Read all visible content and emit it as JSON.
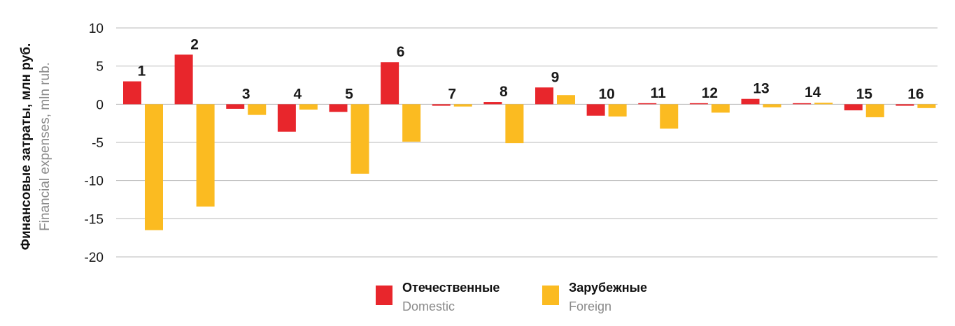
{
  "chart_data": {
    "type": "bar",
    "ylabel_ru": "Финансовые затраты, млн руб.",
    "ylabel_en": "Financial expenses, mln rub.",
    "ylim": [
      -20,
      10
    ],
    "yticks": [
      10,
      5,
      0,
      -5,
      -10,
      -15,
      -20
    ],
    "ytick_labels": [
      "10",
      "5",
      "0",
      "-5",
      "-10",
      "-15",
      "-20"
    ],
    "grid": true,
    "legend_position": "bottom",
    "categories": [
      "1",
      "2",
      "3",
      "4",
      "5",
      "6",
      "7",
      "8",
      "9",
      "10",
      "11",
      "12",
      "13",
      "14",
      "15",
      "16"
    ],
    "series": [
      {
        "name_ru": "Отечественные",
        "name_en": "Domestic",
        "color": "#e8262c",
        "values": [
          3.0,
          6.5,
          -0.6,
          -3.6,
          -1.0,
          5.5,
          -0.2,
          0.3,
          2.2,
          -1.5,
          0.1,
          0.1,
          0.7,
          0.1,
          -0.8,
          -0.2
        ]
      },
      {
        "name_ru": "Зарубежные",
        "name_en": "Foreign",
        "color": "#fbbb21",
        "values": [
          -16.5,
          -13.4,
          -1.4,
          -0.7,
          -9.1,
          -4.9,
          -0.3,
          -5.1,
          1.2,
          -1.6,
          -3.2,
          -1.1,
          -0.4,
          0.2,
          -1.7,
          -0.5
        ]
      }
    ]
  }
}
